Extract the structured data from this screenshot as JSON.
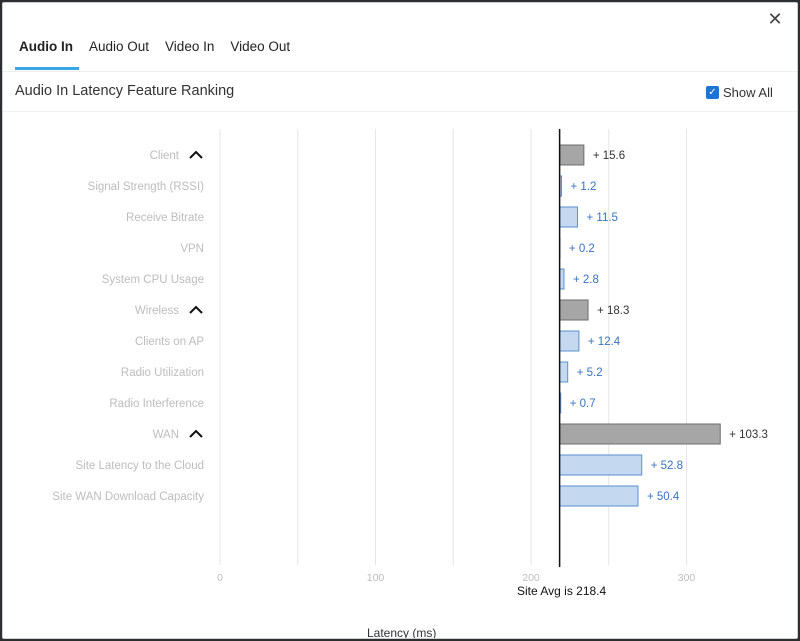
{
  "tabs": [
    {
      "label": "Audio In",
      "active": true
    },
    {
      "label": "Audio Out",
      "active": false
    },
    {
      "label": "Video In",
      "active": false
    },
    {
      "label": "Video Out",
      "active": false
    }
  ],
  "title": "Audio In Latency Feature Ranking",
  "show_all": {
    "label": "Show All",
    "checked": true
  },
  "close_glyph": "✕",
  "site_avg_label": "Site Avg is 218.4",
  "colors": {
    "tab_underline": "#3aa6e6",
    "group_bar": "#a6a6a6",
    "group_bar_stroke": "#6e6e6e",
    "feature_bar": "#c4d9ef",
    "feature_bar_stroke": "#5b8fd0",
    "feature_text": "#3a73c4",
    "group_text": "#333333",
    "label_text": "#bdbdbd"
  },
  "chart_data": {
    "type": "bar",
    "orientation": "horizontal",
    "baseline": 218.4,
    "xlabel": "Latency (ms)",
    "xlim": [
      0,
      350
    ],
    "xticks": [
      0,
      100,
      200,
      300
    ],
    "grid": true,
    "rows": [
      {
        "label": "Client",
        "value": 15.6,
        "value_label": "+ 15.6",
        "group": true
      },
      {
        "label": "Signal Strength (RSSI)",
        "value": 1.2,
        "value_label": "+ 1.2",
        "group": false
      },
      {
        "label": "Receive Bitrate",
        "value": 11.5,
        "value_label": "+ 11.5",
        "group": false
      },
      {
        "label": "VPN",
        "value": 0.2,
        "value_label": "+ 0.2",
        "group": false
      },
      {
        "label": "System CPU Usage",
        "value": 2.8,
        "value_label": "+ 2.8",
        "group": false
      },
      {
        "label": "Wireless",
        "value": 18.3,
        "value_label": "+ 18.3",
        "group": true
      },
      {
        "label": "Clients on AP",
        "value": 12.4,
        "value_label": "+ 12.4",
        "group": false
      },
      {
        "label": "Radio Utilization",
        "value": 5.2,
        "value_label": "+ 5.2",
        "group": false
      },
      {
        "label": "Radio Interference",
        "value": 0.7,
        "value_label": "+ 0.7",
        "group": false
      },
      {
        "label": "WAN",
        "value": 103.3,
        "value_label": "+ 103.3",
        "group": true
      },
      {
        "label": "Site Latency to the Cloud",
        "value": 52.8,
        "value_label": "+ 52.8",
        "group": false
      },
      {
        "label": "Site WAN Download Capacity",
        "value": 50.4,
        "value_label": "+ 50.4",
        "group": false
      }
    ]
  }
}
